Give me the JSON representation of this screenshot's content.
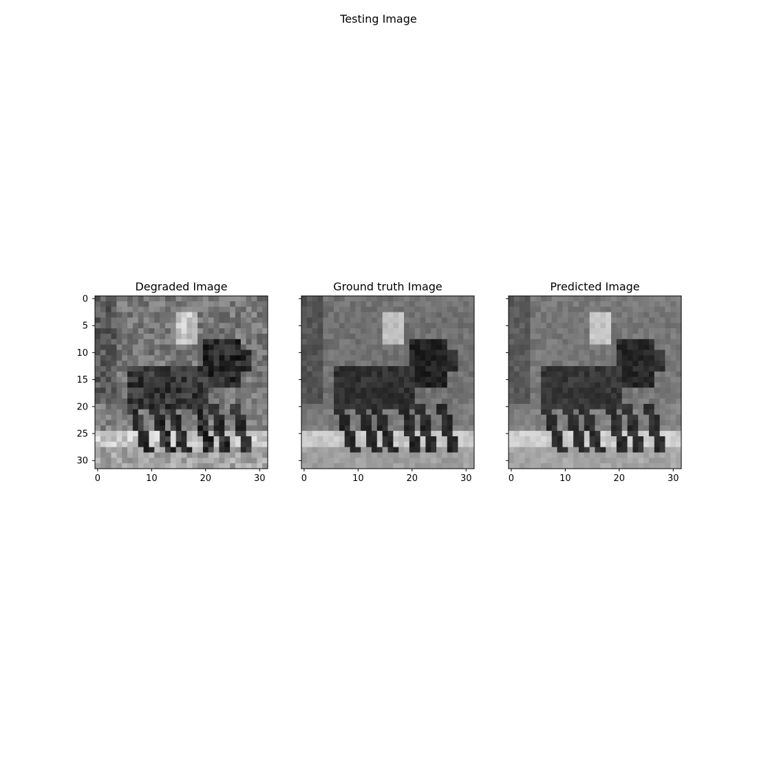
{
  "figure": {
    "suptitle": "Testing Image"
  },
  "chart_data": [
    {
      "type": "heatmap",
      "title": "Degraded Image",
      "colormap": "gray",
      "grid": false,
      "xlim": [
        -0.5,
        31.5
      ],
      "ylim": [
        31.5,
        -0.5
      ],
      "xticks": [
        0,
        10,
        20,
        30
      ],
      "yticks": [
        0,
        5,
        10,
        15,
        20,
        25,
        30
      ],
      "show_ytick_labels": true
    },
    {
      "type": "heatmap",
      "title": "Ground truth Image",
      "colormap": "gray",
      "grid": false,
      "xlim": [
        -0.5,
        31.5
      ],
      "ylim": [
        31.5,
        -0.5
      ],
      "xticks": [
        0,
        10,
        20,
        30
      ],
      "yticks": [
        0,
        5,
        10,
        15,
        20,
        25,
        30
      ],
      "show_ytick_labels": false
    },
    {
      "type": "heatmap",
      "title": "Predicted Image",
      "colormap": "gray",
      "grid": false,
      "xlim": [
        -0.5,
        31.5
      ],
      "ylim": [
        31.5,
        -0.5
      ],
      "xticks": [
        0,
        10,
        20,
        30
      ],
      "yticks": [
        0,
        5,
        10,
        15,
        20,
        25,
        30
      ],
      "show_ytick_labels": false
    }
  ]
}
